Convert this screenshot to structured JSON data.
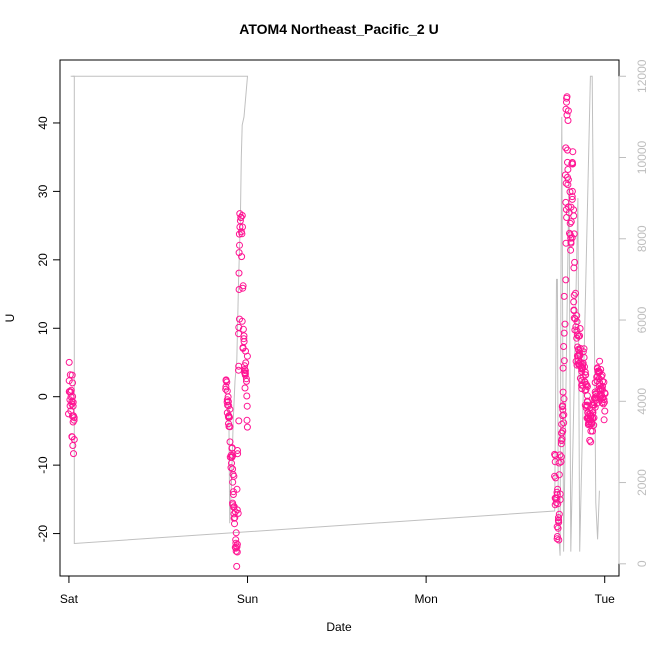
{
  "chart_data": {
    "type": "scatter",
    "title": "ATOM4 Northeast_Pacific_2 U",
    "xlabel": "Date",
    "ylabel": "U",
    "x_ticks": [
      "Sat",
      "Sun",
      "Mon",
      "Tue"
    ],
    "x_unit": "days",
    "xlim": [
      -0.05,
      3.08
    ],
    "ylim": [
      -26.2,
      49.2
    ],
    "y_ticks": [
      -20,
      -10,
      0,
      10,
      20,
      30,
      40
    ],
    "y2lim": [
      -300,
      12400
    ],
    "y2_ticks": [
      0,
      2000,
      4000,
      6000,
      8000,
      10000,
      12000
    ],
    "grid": false,
    "colors": {
      "points": "#ff1493",
      "line": "#c0c0c0",
      "axis_right": "#bebebe"
    },
    "series": [
      {
        "type": "points",
        "segments": [
          {
            "x_range": [
              0.0,
              0.03
            ],
            "path": [
              [
                0.0,
                -3
              ],
              [
                0.005,
                4
              ],
              [
                0.01,
                -2
              ],
              [
                0.015,
                3
              ],
              [
                0.02,
                -6
              ],
              [
                0.025,
                -1
              ],
              [
                0.03,
                -7
              ]
            ]
          },
          {
            "x_range": [
              0.88,
              1.0
            ],
            "path": [
              [
                0.88,
                2
              ],
              [
                0.89,
                -1
              ],
              [
                0.9,
                -4
              ],
              [
                0.91,
                -9
              ],
              [
                0.92,
                -14
              ],
              [
                0.93,
                -19
              ],
              [
                0.935,
                -22
              ],
              [
                0.94,
                -23
              ],
              [
                0.945,
                -15
              ],
              [
                0.95,
                5
              ],
              [
                0.955,
                15
              ],
              [
                0.96,
                24
              ],
              [
                0.965,
                29
              ],
              [
                0.97,
                22
              ],
              [
                0.975,
                10
              ],
              [
                0.98,
                7
              ],
              [
                0.985,
                3
              ],
              [
                0.99,
                0
              ],
              [
                0.995,
                5
              ],
              [
                1.0,
                -3
              ]
            ]
          },
          {
            "x_range": [
              2.72,
              3.0
            ],
            "path": [
              [
                2.72,
                -10
              ],
              [
                2.73,
                -15
              ],
              [
                2.74,
                -20
              ],
              [
                2.745,
                -18
              ],
              [
                2.75,
                -10
              ],
              [
                2.76,
                -5
              ],
              [
                2.77,
                0
              ],
              [
                2.775,
                10
              ],
              [
                2.78,
                25
              ],
              [
                2.785,
                35
              ],
              [
                2.79,
                45
              ],
              [
                2.8,
                30
              ],
              [
                2.81,
                20
              ],
              [
                2.82,
                35
              ],
              [
                2.83,
                15
              ],
              [
                2.84,
                10
              ],
              [
                2.85,
                5
              ],
              [
                2.86,
                8
              ],
              [
                2.87,
                3
              ],
              [
                2.88,
                6
              ],
              [
                2.89,
                2
              ],
              [
                2.9,
                0
              ],
              [
                2.91,
                -2
              ],
              [
                2.92,
                -5
              ],
              [
                2.93,
                -3
              ],
              [
                2.95,
                0
              ],
              [
                2.97,
                3
              ],
              [
                2.99,
                1
              ],
              [
                3.0,
                -2
              ]
            ]
          }
        ]
      },
      {
        "type": "line",
        "axis": "right",
        "points": [
          [
            0.01,
            12000
          ],
          [
            0.03,
            12000
          ],
          [
            0.03,
            500
          ],
          [
            2.72,
            1300
          ],
          [
            2.73,
            7000
          ],
          [
            2.735,
            7000
          ],
          [
            2.74,
            900
          ],
          [
            2.75,
            200
          ],
          [
            2.755,
            7500
          ],
          [
            2.76,
            11000
          ],
          [
            2.77,
            300
          ],
          [
            2.8,
            9500
          ],
          [
            2.81,
            300
          ],
          [
            2.85,
            9000
          ],
          [
            2.86,
            300
          ],
          [
            2.92,
            12000
          ],
          [
            2.93,
            12000
          ],
          [
            2.95,
            1500
          ],
          [
            2.96,
            600
          ],
          [
            2.97,
            1800
          ]
        ]
      },
      {
        "type": "line",
        "axis": "right",
        "points": [
          [
            0.02,
            12000
          ],
          [
            1.0,
            12000
          ],
          [
            0.98,
            11000
          ],
          [
            0.97,
            10800
          ],
          [
            0.965,
            10000
          ],
          [
            0.96,
            8500
          ],
          [
            0.95,
            7000
          ],
          [
            0.94,
            5000
          ],
          [
            0.93,
            4500
          ],
          [
            0.92,
            3500
          ],
          [
            0.91,
            2000
          ],
          [
            0.9,
            1000
          ],
          [
            0.895,
            4000
          ]
        ]
      }
    ]
  }
}
